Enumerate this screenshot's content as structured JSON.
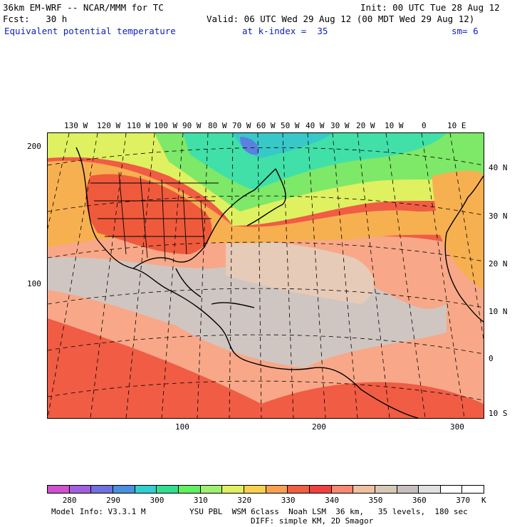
{
  "header": {
    "model_line": "36km EM-WRF -- NCAR/MMM for TC",
    "init_line": "Init: 00 UTC Tue 28 Aug 12",
    "fcst_line": "Fcst:   30 h",
    "valid_line": "Valid: 06 UTC Wed 29 Aug 12 (00 MDT Wed 29 Aug 12)",
    "field_name": "Equivalent potential temperature",
    "level": "at k-index =  35",
    "smoothing": "sm= 6"
  },
  "map": {
    "lon_labels": [
      "130 W",
      "120 W",
      "110 W",
      "100 W",
      "90 W",
      "80 W",
      "70 W",
      "60 W",
      "50 W",
      "40 W",
      "30 W",
      "20 W",
      "10 W",
      "0",
      "10 E"
    ],
    "lat_labels": [
      "40 N",
      "30 N",
      "20 N",
      "10 N",
      "0",
      "10 S"
    ],
    "y_grid_labels": [
      "200",
      "100"
    ],
    "x_grid_labels": [
      "100",
      "200",
      "300"
    ]
  },
  "colorbar": {
    "colors": [
      "#d050d0",
      "#a060e0",
      "#7070e0",
      "#4a90e0",
      "#30d0d0",
      "#30e090",
      "#60f060",
      "#a0f070",
      "#e0f060",
      "#f8d050",
      "#f8a050",
      "#f06040",
      "#f04040",
      "#f88870",
      "#f0c0a0",
      "#d8c8b8",
      "#c8c0c0",
      "#e0e0e0",
      "#ffffff",
      "#ffffff"
    ],
    "labels": [
      "280",
      "290",
      "300",
      "310",
      "320",
      "330",
      "340",
      "350",
      "360",
      "370"
    ],
    "unit": "K"
  },
  "footer": {
    "model_info": "Model Info: V3.3.1 M",
    "physics": "YSU PBL  WSM 6class  Noah LSM  36 km,   35 levels,  180 sec",
    "diffusion": "DIFF: simple KM, 2D Smagor"
  }
}
